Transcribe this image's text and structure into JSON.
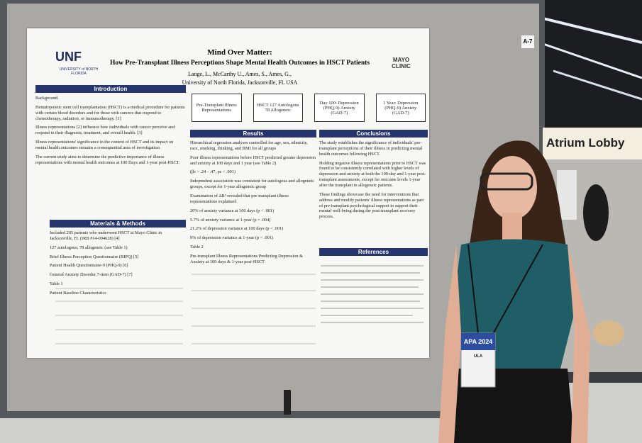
{
  "sign": {
    "booth": "A-7",
    "lobby": "Atrium Lobby"
  },
  "poster": {
    "logo_left": {
      "name": "UNF",
      "sub": "UNIVERSITY of NORTH FLORIDA"
    },
    "logo_right": {
      "name": "MAYO CLINIC"
    },
    "title": "Mind Over Matter:",
    "subtitle": "How Pre-Transplant Illness Perceptions Shape Mental Health Outcomes in HSCT Patients",
    "authors": "Lange, L., McCarthy U., Ames, S., Ames, G.,",
    "affiliation": "University of North Florida, Jacksonville, FL USA",
    "flow": [
      "Pre-Transplant Illness Representations",
      "HSCT 127 Autologous 78 Allogeneic",
      "Day 100: Depression (PHQ-9) Anxiety (GAD-7)",
      "1 Year: Depression (PHQ-9) Anxiety (GAD-7)"
    ],
    "sections": [
      {
        "heading": "Introduction",
        "paragraphs": [
          "Background:",
          "Hematopoietic stem cell transplantation (HSCT) is a medical procedure for patients with certain blood disorders and for those with cancers that respond to chemotherapy, radiation, or immunotherapy. [1]",
          "Illness representations [2] influence how individuals with cancer perceive and respond to their diagnosis, treatment, and overall health. [3]",
          "Illness representations' significance in the context of HSCT and its impact on mental health outcomes remains a consequential area of investigation.",
          "The current study aims to determine the predictive importance of illness representations with mental health outcomes at 100 Days and 1-year post-HSCT."
        ]
      },
      {
        "heading": "Materials & Methods",
        "paragraphs": [
          "Included 205 patients who underwent HSCT at Mayo Clinic in Jacksonville, FL (IRB #14-004628) [4]",
          "127 autologous; 78 allogeneic (see Table 1)",
          "Brief Illness Perception Questionnaire (BIPQ) [5]",
          "Patient Health Questionnaire-9 (PHQ-9) [6]",
          "General Anxiety Disorder 7-item (GAD-7) [7]",
          "Table 1",
          "Patient Baseline Characteristics"
        ]
      },
      {
        "heading": "Results",
        "paragraphs": [
          "Hierarchical regression analyses controlled for age, sex, ethnicity, race, smoking, drinking, and BMI for all groups",
          "Poor illness representations before HSCT predicted greater depression and anxiety at 100 days and 1 year (see Table 2)",
          "(βs > .24 - .47, ps < .001)",
          "Independent association was consistent for autologous and allogeneic groups, except for 1-year allogeneic group",
          "Examination of ΔR² revealed that pre-transplant illness representations explained:",
          "20% of anxiety variance at 100 days (p < .001)",
          "5.7% of anxiety variance at 1-year (p = .004)",
          "21.2% of depression variance at 100 days (p < .001)",
          "9% of depression variance at 1-year (p < .001)",
          "Table 2",
          "Pre-transplant Illness Representations Predicting Depression & Anxiety at 100 days & 1-year post-HSCT"
        ]
      },
      {
        "heading": "Conclusions",
        "paragraphs": [
          "The study establishes the significance of individuals' pre-transplant perceptions of their illness in predicting mental health outcomes following HSCT.",
          "Holding negative illness representations prior to HSCT was found to be consistently correlated with higher levels of depression and anxiety at both the 100-day and 1-year post-transplant assessments, except for outcome levels 1-year after the transplant in allogeneic patients.",
          "These findings showcase the need for interventions that address and modify patients' illness representations as part of pre-transplant psychological support to support their mental well-being during the post-transplant recovery process."
        ]
      },
      {
        "heading": "References",
        "paragraphs": []
      }
    ]
  },
  "badge": {
    "event": "APA 2024",
    "name": "ULA"
  }
}
